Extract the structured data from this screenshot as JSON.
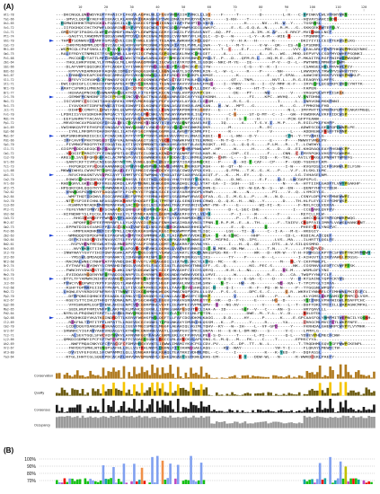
{
  "figure": {
    "panel_a_label": "(A)",
    "panel_b_label": "(B)",
    "ruler_ticks": [
      "10",
      "20",
      "30",
      "40",
      "50",
      "60",
      "70",
      "80",
      "90",
      "100",
      "110",
      "120"
    ],
    "track_labels": [
      "Conservation",
      "Quality",
      "Consensus",
      "Occupancy"
    ],
    "logo_percent_labels": [
      "100%",
      "90%",
      "80%",
      "70%"
    ],
    "seq_names": [
      "At1-78",
      "Ta1-66",
      "Os1-65",
      "Vv1-72",
      "Cs1-71",
      "Pt1-74",
      "Gh1-70",
      "Ca1-73",
      "Mt1-69",
      "Gm1-75",
      "Pv1-68",
      "Zm1-64",
      "Sb1-66",
      "Bd1-63",
      "Hv1-67",
      "Sl1-72",
      "St1-71",
      "Nt1-70",
      "Br1-77",
      "Cr1-76",
      "Me1-72",
      "Rc1-73",
      "Jc1-71",
      "Fv1-70",
      "Md1-74",
      "Pp1-72",
      "Ac1-69",
      "Eg1-68",
      "Ma1-67",
      "Pd1-66",
      "Sp1-70",
      "Cl1-71",
      "Cm1-72",
      "Cs2-70",
      "Gr1-69",
      "Tc1-73",
      "Lj1-68",
      "Ah1-71",
      "Ca2-70",
      "Vr1-69",
      "At2-75",
      "Ta2-62",
      "Os2-64",
      "Vv2-70",
      "Cs3-69",
      "Pt2-71",
      "Gh2-68",
      "Ca3-72",
      "Mt2-67",
      "Gm2-73",
      "Pv2-66",
      "Zm2-63",
      "Sb2-64",
      "Bd2-61",
      "Hv2-65",
      "Sl2-70",
      "St2-69",
      "Nt2-68",
      "Br2-74",
      "Cr2-72",
      "Me2-70",
      "Rc2-71",
      "Jc2-69",
      "Fv2-68",
      "Md2-72",
      "Pp2-70",
      "Ac2-67",
      "Eg2-66",
      "Ma2-65",
      "Pd2-64",
      "Sp2-68",
      "Cl2-69",
      "Cm2-70",
      "Gr2-67",
      "Tc2-71",
      "Lj2-66",
      "Ah2-69",
      "Vr2-67",
      "At3-80",
      "Ta3-64"
    ]
  },
  "colors": {
    "hydrophobic": "#80a0f0",
    "positive": "#f01505",
    "negative": "#c048c0",
    "polar": "#15c015",
    "cys": "#f08080",
    "gly": "#f09048",
    "pro": "#c0c000",
    "aromatic": "#15a4a4",
    "conservation": "#b07a1f",
    "quality_low": "#6b5a10",
    "quality_high": "#f5c400",
    "consensus": "#1a1a1a",
    "occupancy": "#9a9a9a",
    "arrow": "#1a3fd6"
  }
}
